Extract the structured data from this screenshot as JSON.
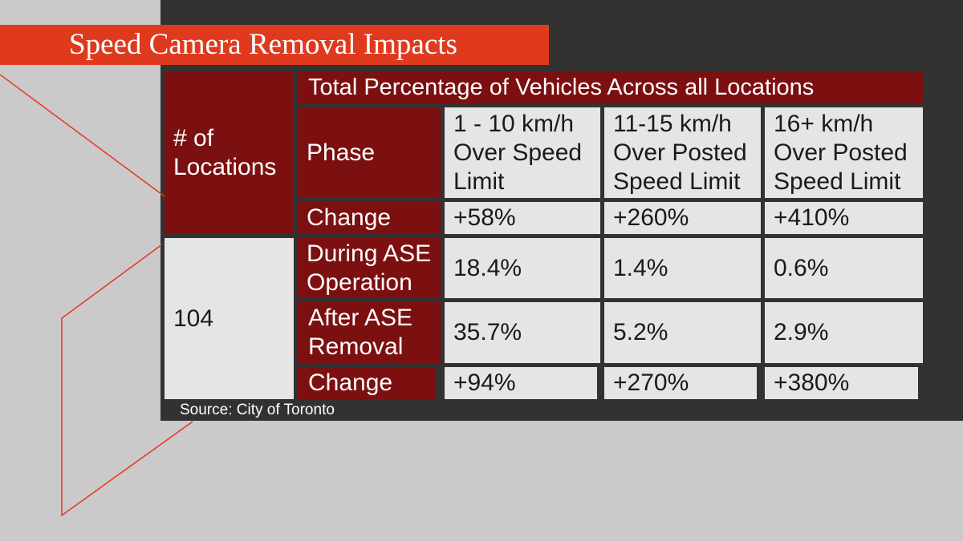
{
  "title": "Speed Camera Removal Impacts",
  "table": {
    "header": {
      "locations_label": "# of Locations",
      "total_label": "Total Percentage of Vehicles Across all Locations",
      "phase_label": "Phase",
      "columns": [
        "1 - 10 km/h Over Speed Limit",
        "11-15 km/h Over Posted Speed Limit",
        "16+ km/h Over Posted Speed Limit"
      ]
    },
    "top_change": {
      "label": "Change",
      "values": [
        "+58%",
        "+260%",
        "+410%"
      ]
    },
    "locations_value": "104",
    "rows": [
      {
        "phase": "During ASE Operation",
        "values": [
          "18.4%",
          "1.4%",
          "0.6%"
        ]
      },
      {
        "phase": "After ASE Removal",
        "values": [
          "35.7%",
          "5.2%",
          "2.9%"
        ]
      }
    ],
    "bottom_change": {
      "label": "Change",
      "values": [
        "+94%",
        "+270%",
        "+380%"
      ]
    }
  },
  "source": "Source: City of Toronto",
  "colors": {
    "accent": "#e03a1e",
    "dark_cell": "#7c1011",
    "light_cell": "#e6e5e6",
    "panel": "#333232",
    "background": "#cbc9ca"
  }
}
